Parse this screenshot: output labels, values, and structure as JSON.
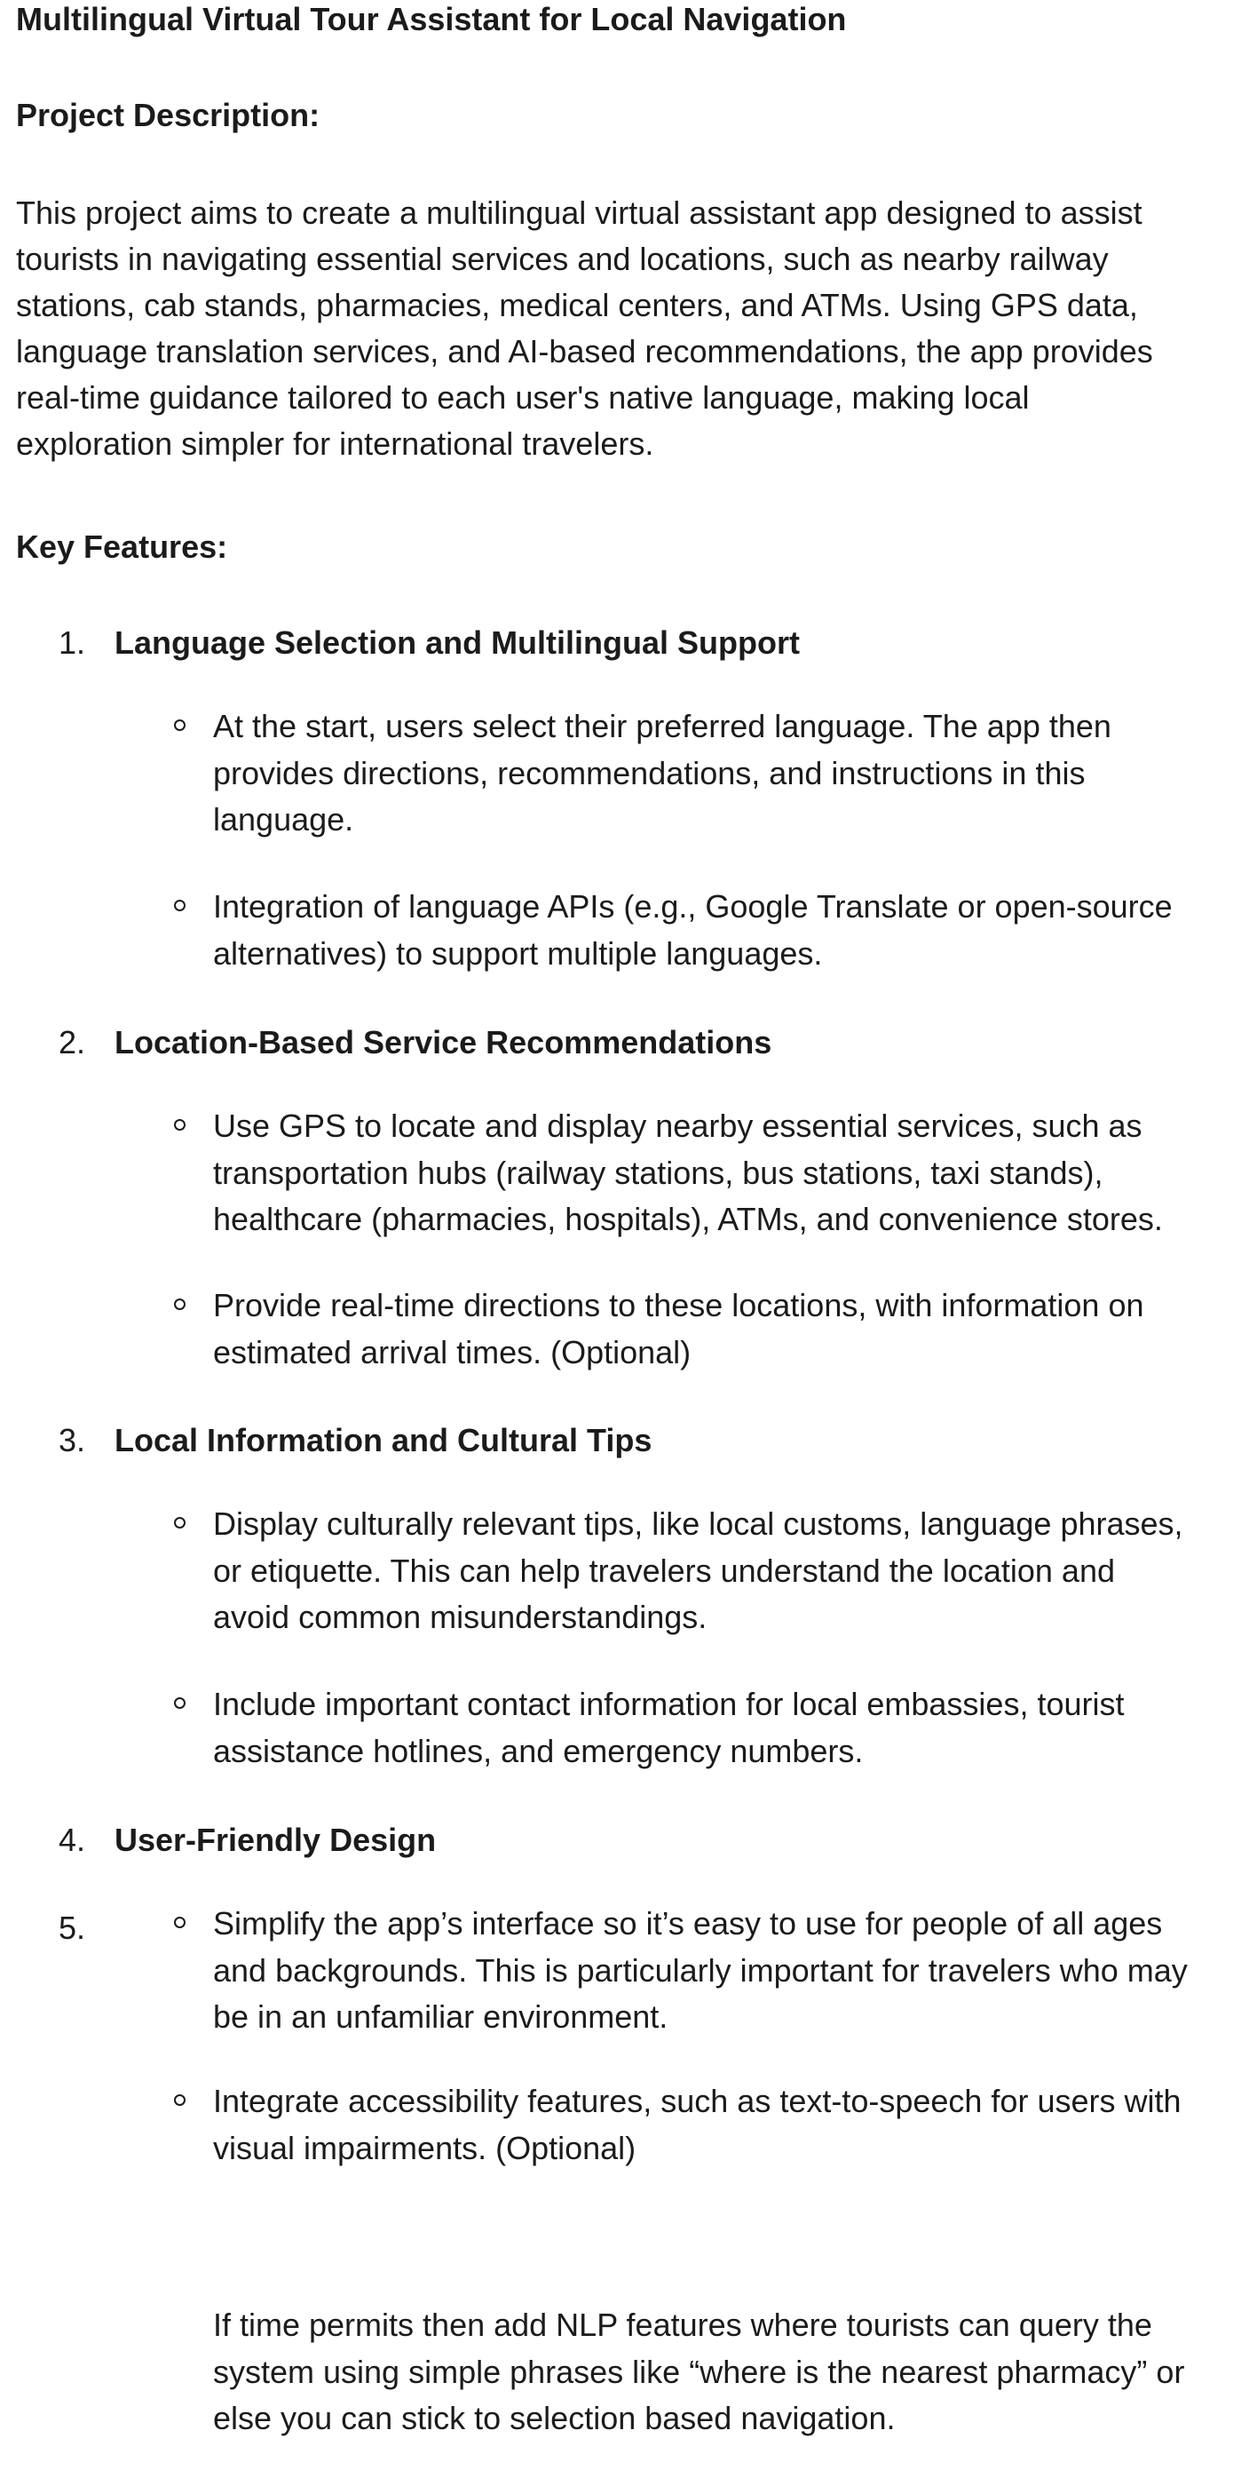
{
  "document": {
    "title": "Multilingual Virtual Tour Assistant for Local Navigation",
    "description_heading": "Project Description:",
    "description_lines": [
      "This project aims to create a multilingual virtual assistant app designed to assist",
      "tourists in navigating essential services and locations, such as nearby railway",
      "stations, cab stands, pharmacies, medical centers, and ATMs. Using GPS data,",
      "language translation services, and AI-based recommendations, the app provides",
      "real-time guidance tailored to each user's native language, making local",
      "exploration simpler for international travelers."
    ],
    "features_heading": "Key Features:",
    "features": [
      {
        "number": "1.",
        "title": "Language Selection and Multilingual Support",
        "bullets": [
          [
            "At the start, users select their preferred language. The app then",
            "provides directions, recommendations, and instructions in this",
            "language."
          ],
          [
            "Integration of language APIs (e.g., Google Translate or open-source",
            "alternatives) to support multiple languages."
          ]
        ]
      },
      {
        "number": "2.",
        "title": "Location-Based Service Recommendations",
        "bullets": [
          [
            "Use GPS to locate and display nearby essential services, such as",
            "transportation hubs (railway stations, bus stations, taxi stands),",
            "healthcare (pharmacies, hospitals), ATMs, and convenience stores."
          ],
          [
            "Provide real-time directions to these locations, with information on",
            "estimated arrival times. (Optional)"
          ]
        ]
      },
      {
        "number": "3.",
        "title": "Local Information and Cultural Tips",
        "bullets": [
          [
            "Display culturally relevant tips, like local customs, language phrases,",
            "or etiquette. This can help travelers understand the location and",
            "avoid common misunderstandings."
          ],
          [
            "Include important contact information for local embassies, tourist",
            "assistance hotlines, and emergency numbers."
          ]
        ]
      },
      {
        "number": "4.",
        "title": "User-Friendly Design",
        "bullets": []
      },
      {
        "number": "5.",
        "title": "",
        "bullets": [
          [
            "Simplify the app’s interface so it’s easy to use for people of all ages",
            "and backgrounds. This is particularly important for travelers who may",
            "be in an unfamiliar environment."
          ],
          [
            "Integrate accessibility features, such as text-to-speech for users with",
            "visual impairments. (Optional)"
          ]
        ]
      }
    ],
    "closing_note_lines": [
      "If time permits then add NLP features where tourists can query the",
      "system using simple phrases like “where is the nearest pharmacy” or",
      "else you can stick to selection based navigation."
    ]
  }
}
